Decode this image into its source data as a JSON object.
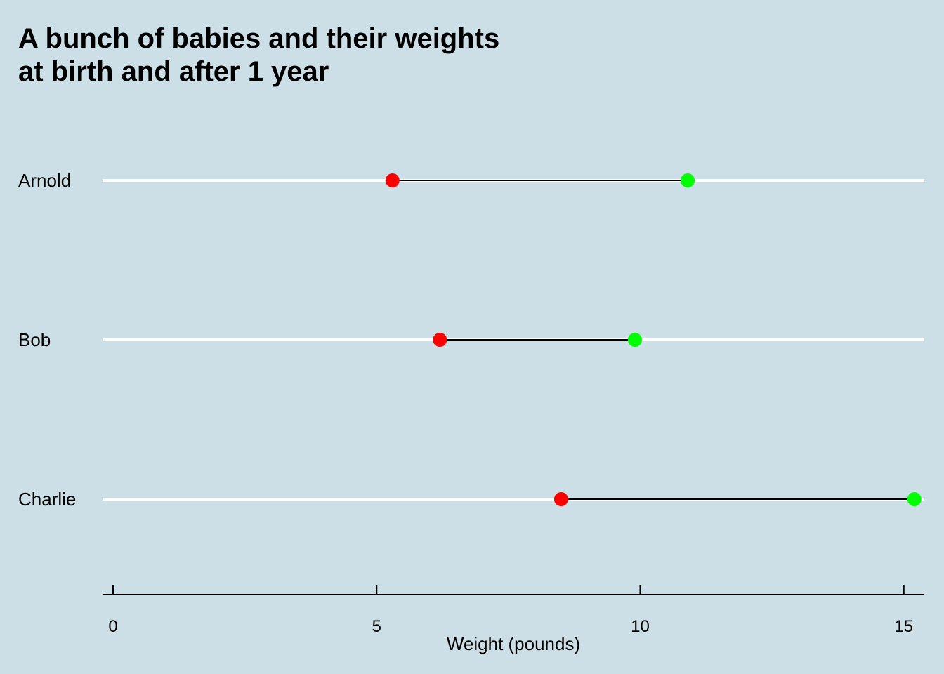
{
  "chart_data": {
    "type": "dumbbell",
    "title_lines": [
      "A bunch of babies and their weights",
      "at birth and after 1 year"
    ],
    "xlabel": "Weight (pounds)",
    "ylabel": "",
    "xlim": [
      0,
      15.5
    ],
    "xticks": [
      0,
      5,
      10,
      15
    ],
    "grid": "horizontal white lines per category",
    "categories": [
      "Arnold",
      "Bob",
      "Charlie"
    ],
    "series": [
      {
        "name": "",
        "values": [
          5.3,
          6.2,
          8.5
        ],
        "color": "#ff0000"
      },
      {
        "name": "",
        "values": [
          10.9,
          9.9,
          15.2
        ],
        "color": "#00ff00"
      }
    ],
    "colors": {
      "background": "#cddfe6",
      "gridline": "#ffffff",
      "segment": "#000000",
      "axis": "#000000"
    }
  }
}
